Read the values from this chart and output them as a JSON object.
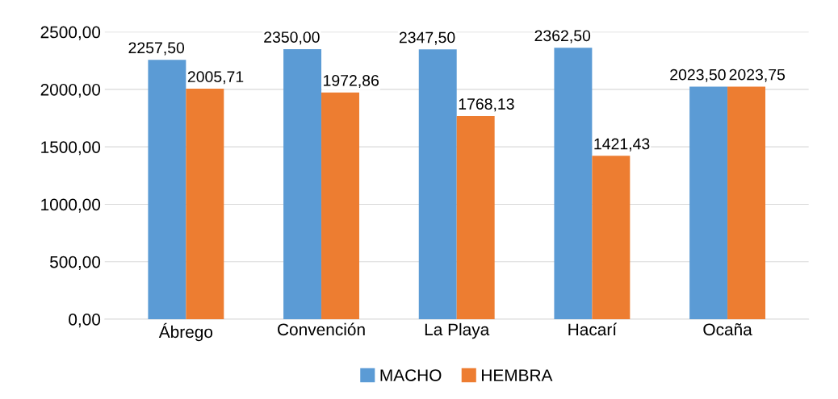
{
  "chart_data": {
    "type": "bar",
    "categories": [
      "Ábrego",
      "Convención",
      "La Playa",
      "Hacarí",
      "Ocaña"
    ],
    "series": [
      {
        "name": "MACHO",
        "color": "#5b9bd5",
        "values": [
          2257.5,
          2350.0,
          2347.5,
          2362.5,
          2023.5
        ],
        "value_labels": [
          "2257,50",
          "2350,00",
          "2347,50",
          "2362,50",
          "2023,50"
        ]
      },
      {
        "name": "HEMBRA",
        "color": "#ed7d31",
        "values": [
          2005.71,
          1972.86,
          1768.13,
          1421.43,
          2023.75
        ],
        "value_labels": [
          "2005,71",
          "1972,86",
          "1768,13",
          "1421,43",
          "2023,75"
        ]
      }
    ],
    "ylim": [
      0,
      2500
    ],
    "yticks": [
      {
        "value": 0,
        "label": "0,00"
      },
      {
        "value": 500,
        "label": "500,00"
      },
      {
        "value": 1000,
        "label": "1000,00"
      },
      {
        "value": 1500,
        "label": "1500,00"
      },
      {
        "value": 2000,
        "label": "2000,00"
      },
      {
        "value": 2500,
        "label": "2500,00"
      }
    ],
    "grid": "y",
    "legend": "bottom"
  }
}
